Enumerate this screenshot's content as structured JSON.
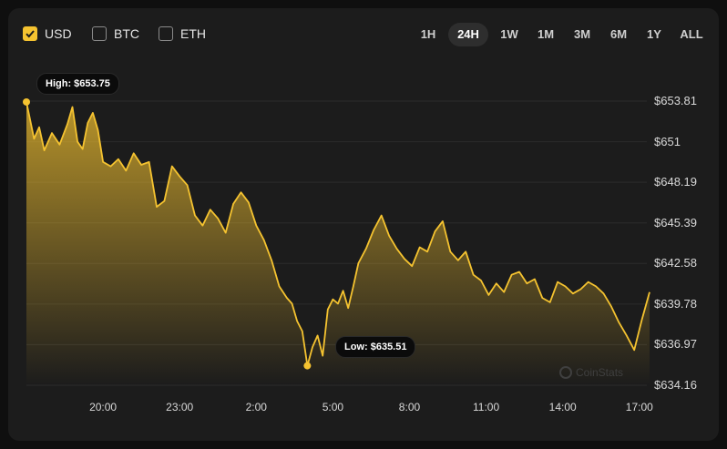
{
  "currencies": [
    {
      "label": "USD",
      "checked": true
    },
    {
      "label": "BTC",
      "checked": false
    },
    {
      "label": "ETH",
      "checked": false
    }
  ],
  "ranges": [
    "1H",
    "24H",
    "1W",
    "1M",
    "3M",
    "6M",
    "1Y",
    "ALL"
  ],
  "active_range": "24H",
  "colors": {
    "accent": "#f5c330",
    "card": "#1c1c1c",
    "grid": "#2b2b2b"
  },
  "high_label": "High: $653.75",
  "low_label": "Low: $635.51",
  "watermark": "CoinStats",
  "chart_data": {
    "type": "area",
    "ylim": [
      634.16,
      653.81
    ],
    "y_ticks": [
      "$653.81",
      "$651",
      "$648.19",
      "$645.39",
      "$642.58",
      "$639.78",
      "$636.97",
      "$634.16"
    ],
    "x_ticks": [
      "20:00",
      "23:00",
      "2:00",
      "5:00",
      "8:00",
      "11:00",
      "14:00",
      "17:00"
    ],
    "x_tick_hours": [
      3,
      6,
      9,
      12,
      15,
      18,
      21,
      24
    ],
    "x": [
      0,
      0.3,
      0.5,
      0.7,
      1,
      1.3,
      1.6,
      1.8,
      2,
      2.2,
      2.4,
      2.6,
      2.8,
      3,
      3.3,
      3.6,
      3.9,
      4.2,
      4.5,
      4.8,
      5.1,
      5.4,
      5.7,
      6,
      6.3,
      6.6,
      6.9,
      7.2,
      7.5,
      7.8,
      8.1,
      8.4,
      8.7,
      9,
      9.3,
      9.6,
      9.9,
      10.2,
      10.4,
      10.6,
      10.8,
      11,
      11.2,
      11.4,
      11.6,
      11.8,
      12,
      12.2,
      12.4,
      12.6,
      12.8,
      13,
      13.3,
      13.6,
      13.9,
      14.2,
      14.5,
      14.8,
      15.1,
      15.4,
      15.7,
      16,
      16.3,
      16.6,
      16.9,
      17.2,
      17.5,
      17.8,
      18.1,
      18.4,
      18.7,
      19,
      19.3,
      19.6,
      19.9,
      20.2,
      20.5,
      20.8,
      21.1,
      21.4,
      21.7,
      22,
      22.3,
      22.6,
      22.9,
      23.2,
      23.5,
      23.8,
      24.1,
      24.4
    ],
    "values": [
      653.75,
      651.2,
      652.0,
      650.4,
      651.6,
      650.8,
      652.2,
      653.4,
      651.0,
      650.5,
      652.3,
      653.0,
      651.8,
      649.6,
      649.3,
      649.8,
      649.0,
      650.2,
      649.4,
      649.6,
      646.5,
      646.9,
      649.3,
      648.6,
      648.0,
      645.9,
      645.2,
      646.3,
      645.7,
      644.7,
      646.7,
      647.5,
      646.8,
      645.2,
      644.2,
      642.8,
      641.0,
      640.2,
      639.8,
      638.6,
      637.9,
      635.51,
      636.8,
      637.6,
      636.2,
      639.4,
      640.1,
      639.8,
      640.7,
      639.5,
      641.0,
      642.6,
      643.6,
      644.9,
      645.9,
      644.5,
      643.6,
      642.9,
      642.4,
      643.7,
      643.4,
      644.8,
      645.5,
      643.4,
      642.8,
      643.4,
      641.8,
      641.4,
      640.4,
      641.2,
      640.6,
      641.8,
      642.0,
      641.2,
      641.5,
      640.2,
      639.9,
      641.3,
      641.0,
      640.5,
      640.8,
      641.3,
      641.0,
      640.5,
      639.6,
      638.5,
      637.6,
      636.6,
      638.7,
      640.6
    ],
    "high": {
      "x": 0,
      "value": 653.75
    },
    "low": {
      "x": 11,
      "value": 635.51
    }
  }
}
